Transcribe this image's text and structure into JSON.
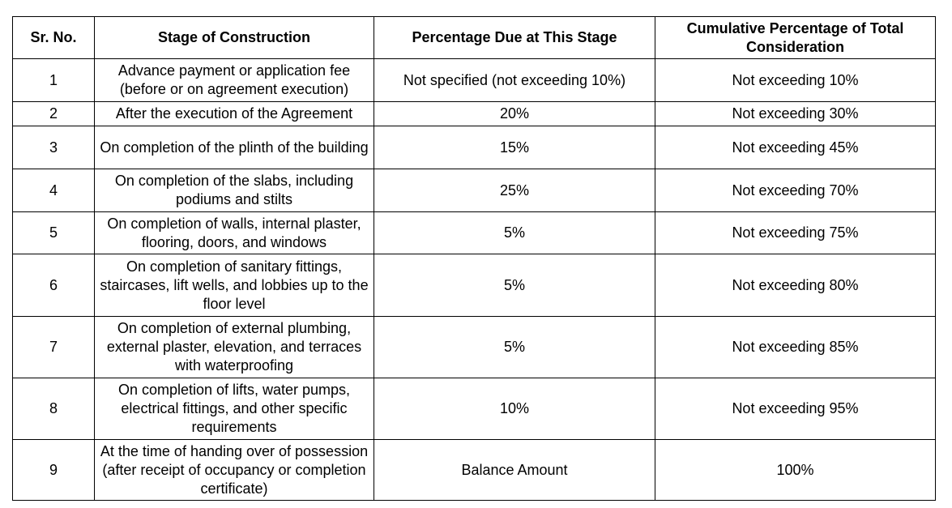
{
  "table": {
    "headers": [
      "Sr. No.",
      "Stage of Construction",
      "Percentage Due at This Stage",
      "Cumulative Percentage of Total Consideration"
    ],
    "rows": [
      [
        "1",
        "Advance payment or application fee (before or on agreement execution)",
        "Not specified (not exceeding 10%)",
        "Not exceeding 10%"
      ],
      [
        "2",
        "After the execution of the Agreement",
        "20%",
        "Not exceeding 30%"
      ],
      [
        "3",
        "On completion of the plinth of the building",
        "15%",
        "Not exceeding 45%"
      ],
      [
        "4",
        "On completion of the slabs, including podiums and stilts",
        "25%",
        "Not exceeding 70%"
      ],
      [
        "5",
        "On completion of walls, internal plaster, flooring, doors, and windows",
        "5%",
        "Not exceeding 75%"
      ],
      [
        "6",
        "On completion of sanitary fittings, staircases, lift wells, and lobbies up to the floor level",
        "5%",
        "Not exceeding 80%"
      ],
      [
        "7",
        "On completion of external plumbing, external plaster, elevation, and terraces with waterproofing",
        "5%",
        "Not exceeding 85%"
      ],
      [
        "8",
        "On completion of lifts, water pumps, electrical fittings, and other specific requirements",
        "10%",
        "Not exceeding 95%"
      ],
      [
        "9",
        "At the time of handing over of possession (after receipt of occupancy or completion certificate)",
        "Balance Amount",
        "100%"
      ]
    ]
  }
}
